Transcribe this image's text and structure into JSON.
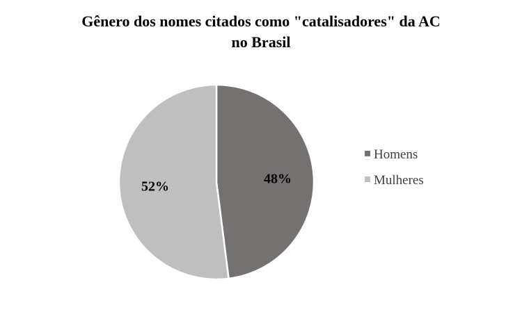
{
  "chart_data": {
    "type": "pie",
    "title": "Gênero dos nomes citados como \"catalisadores\" da AC no Brasil",
    "title_lines": [
      "Gênero dos nomes citados como \"catalisadores\" da AC",
      "no Brasil"
    ],
    "slices": [
      {
        "label": "Homens",
        "value": 48,
        "display": "48%",
        "color": "#767171"
      },
      {
        "label": "Mulheres",
        "value": 52,
        "display": "52%",
        "color": "#bfbfbf"
      }
    ],
    "legend_position": "right",
    "start_angle": "12 o'clock",
    "direction": "clockwise",
    "slice_border_color": "#ffffff"
  }
}
